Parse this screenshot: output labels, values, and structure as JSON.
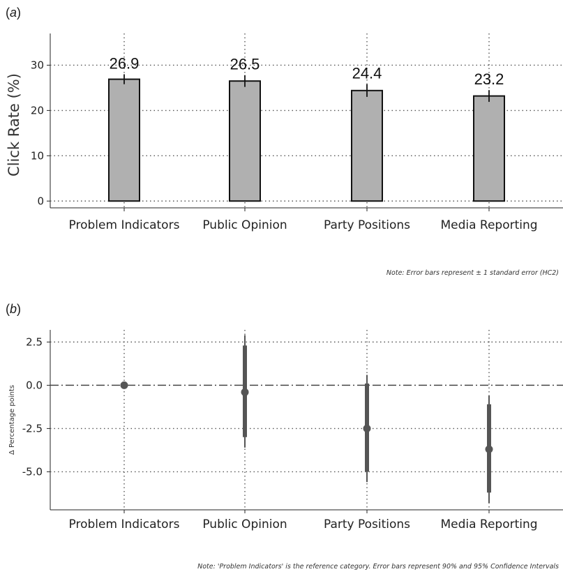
{
  "panel_a": {
    "label_paren_open": "(",
    "label_letter": "a",
    "label_paren_close": ")",
    "note": "Note: Error bars represent ± 1 standard error (HC2)"
  },
  "panel_b": {
    "label_paren_open": "(",
    "label_letter": "b",
    "label_paren_close": ")",
    "note": "Note: 'Problem Indicators' is the reference category. Error bars represent 90% and 95% Confidence Intervals"
  },
  "colors": {
    "bar_fill": "#b0b0b0",
    "bar_stroke": "#111111",
    "point": "#555555",
    "grid": "#555555"
  },
  "chart_data": [
    {
      "type": "bar",
      "title": "",
      "xlabel": "",
      "ylabel": "Click Rate (%)",
      "categories": [
        "Problem Indicators",
        "Public Opinion",
        "Party Positions",
        "Media Reporting"
      ],
      "values": [
        26.9,
        26.5,
        24.4,
        23.2
      ],
      "data_labels": [
        "26.9",
        "26.5",
        "24.4",
        "23.2"
      ],
      "error_se": [
        1.1,
        1.3,
        1.4,
        1.3
      ],
      "ylim": [
        -1.5,
        37
      ],
      "yticks": [
        0,
        10,
        20,
        30
      ],
      "ytick_labels": [
        "0",
        "10",
        "20",
        "30"
      ],
      "grid": true
    },
    {
      "type": "scatter",
      "title": "",
      "xlabel": "",
      "ylabel": "Δ Percentage points",
      "categories": [
        "Problem Indicators",
        "Public Opinion",
        "Party Positions",
        "Media Reporting"
      ],
      "values": [
        0.0,
        -0.4,
        -2.5,
        -3.7
      ],
      "ci90": [
        [
          0.0,
          0.0
        ],
        [
          -3.0,
          2.3
        ],
        [
          -5.0,
          0.1
        ],
        [
          -6.2,
          -1.1
        ]
      ],
      "ci95": [
        [
          0.0,
          0.0
        ],
        [
          -3.6,
          2.9
        ],
        [
          -5.6,
          0.6
        ],
        [
          -6.8,
          -0.6
        ]
      ],
      "reference_line": 0,
      "ylim": [
        -7.2,
        3.2
      ],
      "yticks": [
        2.5,
        0.0,
        -2.5,
        -5.0
      ],
      "ytick_labels": [
        "2.5",
        "0.0",
        "-2.5",
        "-5.0"
      ],
      "grid": true
    }
  ]
}
